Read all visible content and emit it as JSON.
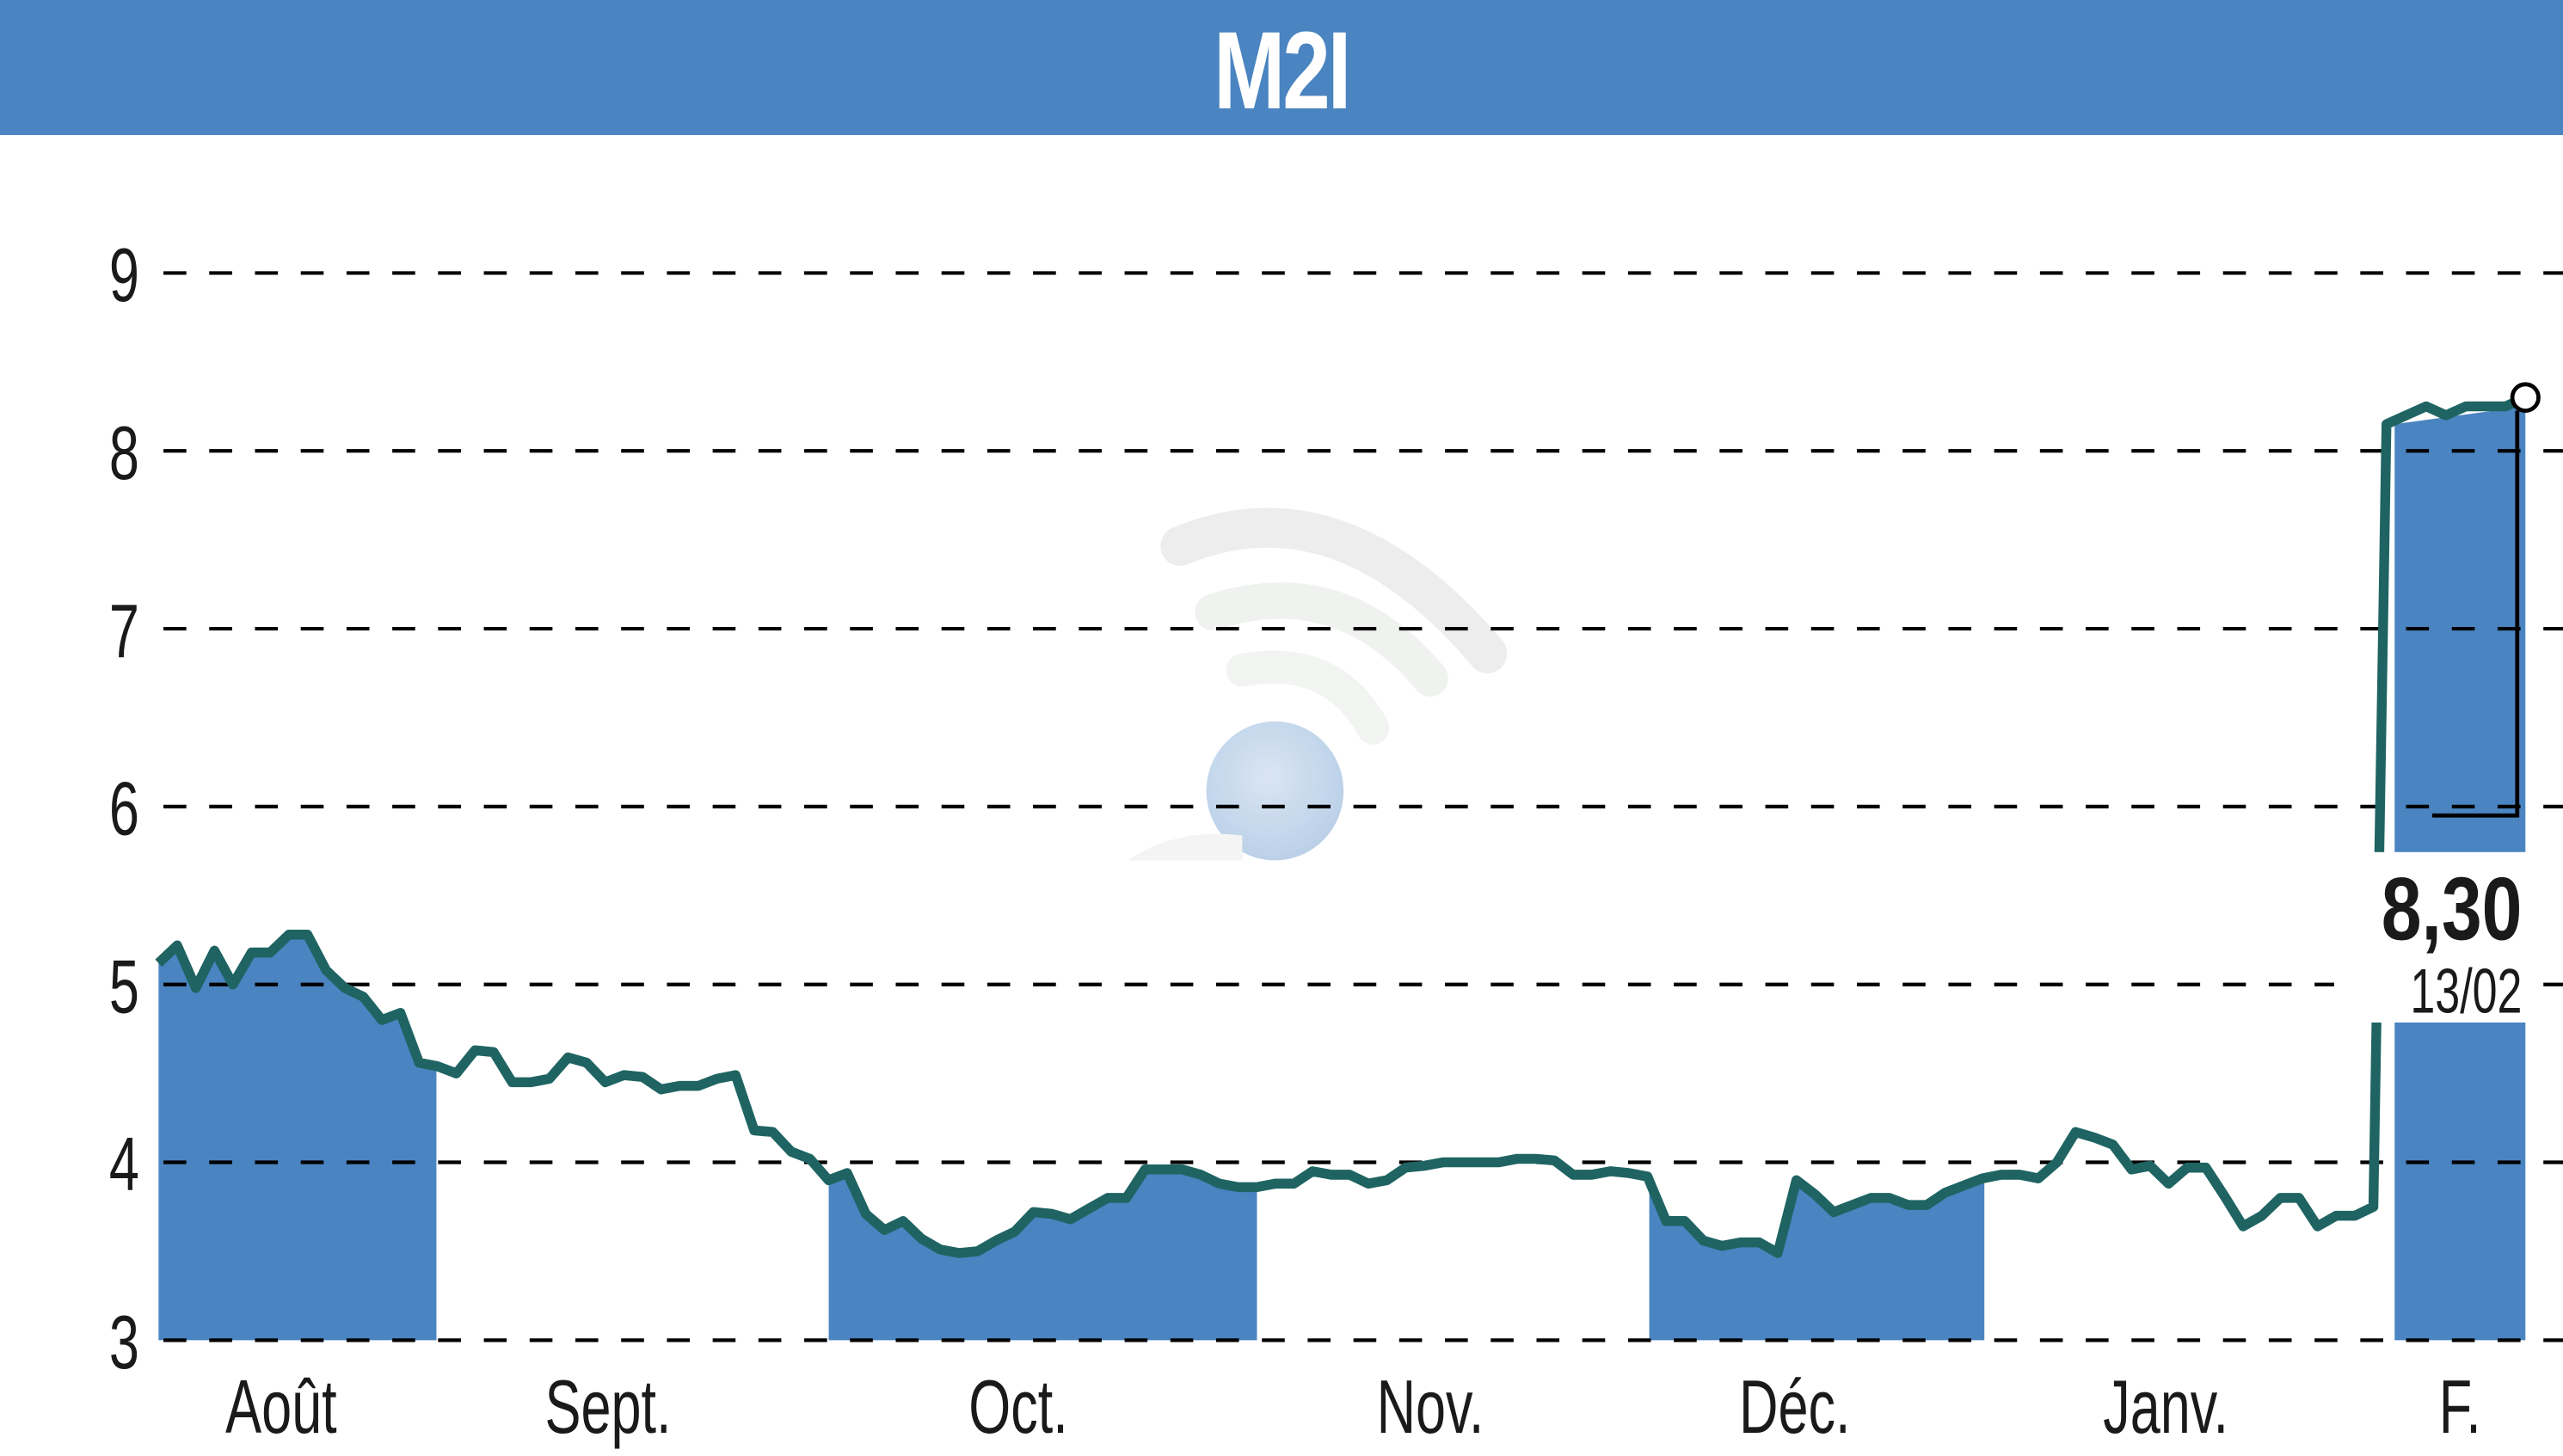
{
  "header": {
    "title": "M2I",
    "color": "#4A84C1"
  },
  "colors": {
    "band": "#4A84C1",
    "line": "#1F6462",
    "grid": "#000000",
    "text": "#1a1a1a"
  },
  "last_value": {
    "price": "8,30",
    "date": "13/02"
  },
  "chart_data": {
    "type": "line",
    "title": "M2I",
    "xlabel": "",
    "ylabel": "",
    "ylim": [
      3,
      9
    ],
    "yticks": [
      3,
      4,
      5,
      6,
      7,
      8,
      9
    ],
    "grid": true,
    "months": [
      "Août",
      "Sept.",
      "Oct.",
      "Nov.",
      "Déc.",
      "Janv.",
      "F."
    ],
    "shaded_months": [
      "Août",
      "Oct.",
      "Déc.",
      "F."
    ],
    "series": [
      {
        "name": "M2I",
        "values": [
          5.12,
          5.22,
          4.98,
          5.19,
          5.0,
          5.18,
          5.18,
          5.28,
          5.28,
          5.08,
          4.98,
          4.93,
          4.8,
          4.84,
          4.56,
          4.54,
          4.5,
          4.63,
          4.62,
          4.45,
          4.45,
          4.47,
          4.59,
          4.56,
          4.45,
          4.49,
          4.48,
          4.41,
          4.43,
          4.43,
          4.47,
          4.49,
          4.18,
          4.17,
          4.06,
          4.02,
          3.9,
          3.94,
          3.71,
          3.62,
          3.67,
          3.57,
          3.51,
          3.49,
          3.5,
          3.56,
          3.61,
          3.72,
          3.71,
          3.68,
          3.74,
          3.8,
          3.8,
          3.96,
          3.96,
          3.96,
          3.93,
          3.88,
          3.86,
          3.86,
          3.88,
          3.88,
          3.95,
          3.93,
          3.93,
          3.88,
          3.9,
          3.97,
          3.98,
          4.0,
          4.0,
          4.0,
          4.0,
          4.02,
          4.02,
          4.01,
          3.93,
          3.93,
          3.95,
          3.94,
          3.92,
          3.67,
          3.67,
          3.56,
          3.53,
          3.55,
          3.55,
          3.49,
          3.9,
          3.82,
          3.72,
          3.76,
          3.8,
          3.8,
          3.76,
          3.76,
          3.83,
          3.87,
          3.91,
          3.93,
          3.93,
          3.91,
          4.0,
          4.17,
          4.14,
          4.1,
          3.96,
          3.98,
          3.88,
          3.97,
          3.97,
          3.81,
          3.64,
          3.7,
          3.8,
          3.8,
          3.64,
          3.7,
          3.7,
          3.75,
          8.15,
          8.2,
          8.25,
          8.2,
          8.25,
          8.25,
          8.25,
          8.3
        ]
      }
    ],
    "annotations": [
      {
        "text": "8,30",
        "subtext": "13/02"
      }
    ]
  }
}
